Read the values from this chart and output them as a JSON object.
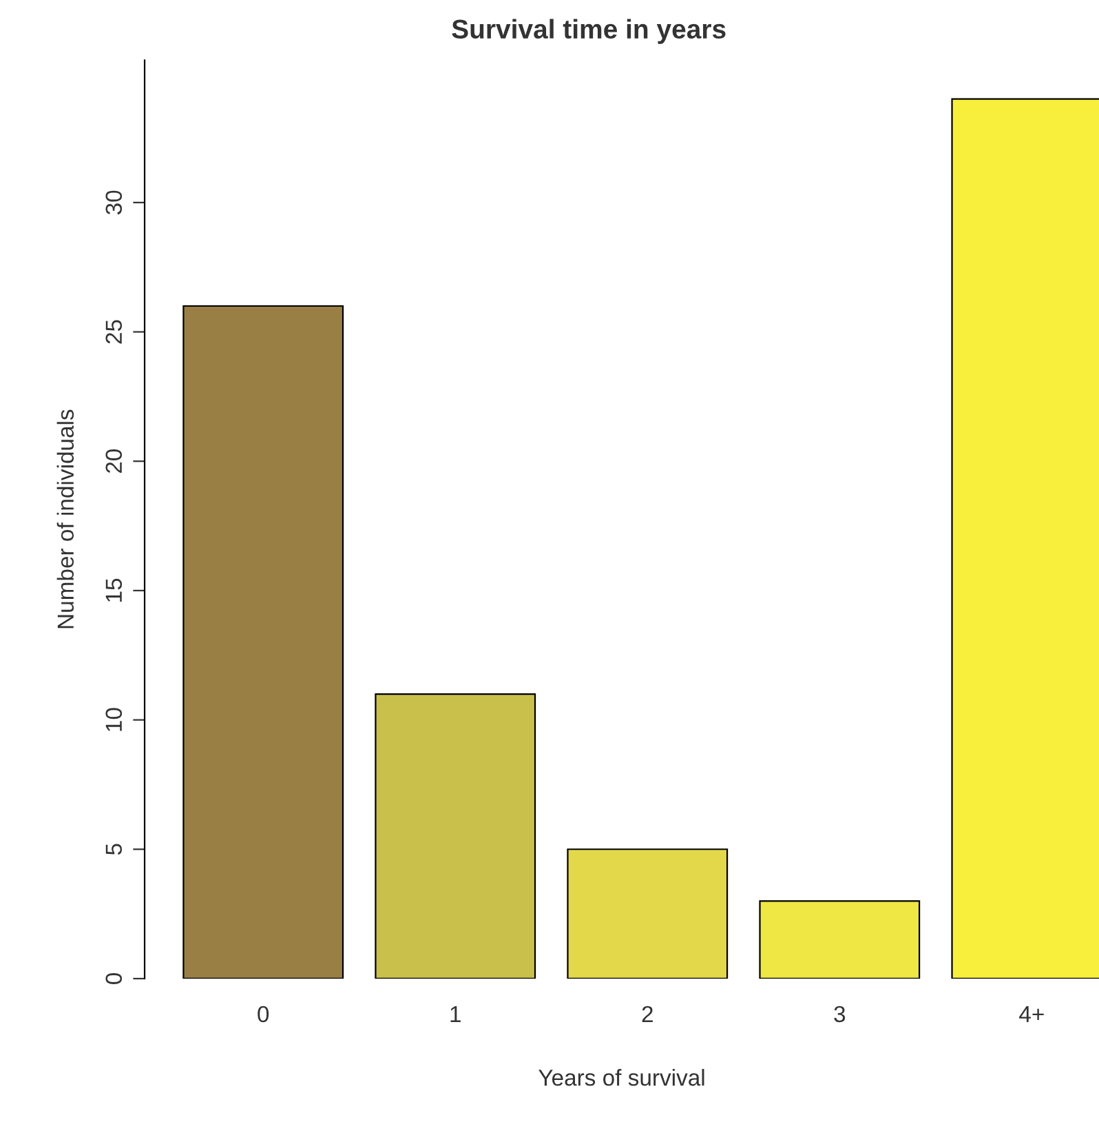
{
  "chart_data": {
    "type": "bar",
    "title": "Survival time in years",
    "xlabel": "Years of survival",
    "ylabel": "Number of individuals",
    "categories": [
      "0",
      "1",
      "2",
      "3",
      "4+"
    ],
    "values": [
      26,
      11,
      5,
      3,
      34
    ],
    "colors": [
      "#9a7f45",
      "#c9c04c",
      "#e2d84a",
      "#eee744",
      "#f8ef3c"
    ],
    "ylim": [
      0,
      35.5
    ],
    "yticks": [
      0,
      5,
      10,
      15,
      20,
      25,
      30
    ],
    "grid": false,
    "legend": false
  }
}
